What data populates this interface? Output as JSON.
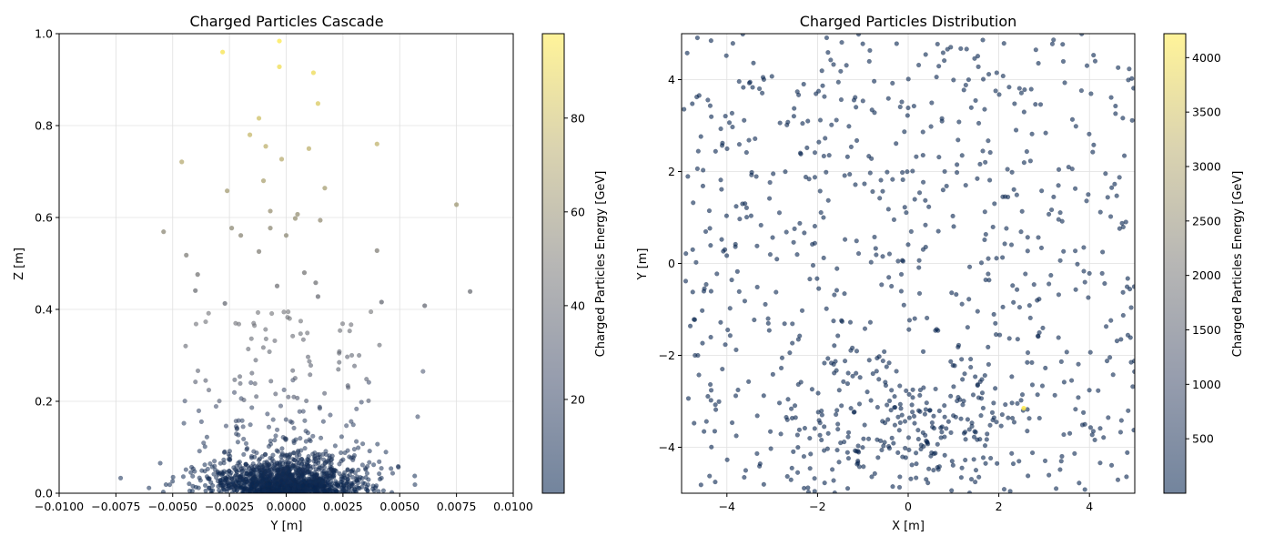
{
  "chart_data": [
    {
      "type": "scatter",
      "title": "Charged Particles Cascade",
      "xlabel": "Y [m]",
      "ylabel": "Z [m]",
      "xlim": [
        -0.01,
        0.01
      ],
      "ylim": [
        0.0,
        1.0
      ],
      "xticks": [
        "−0.0100",
        "−0.0075",
        "−0.0050",
        "−0.0025",
        "0.0000",
        "0.0025",
        "0.0050",
        "0.0075",
        "0.0100"
      ],
      "yticks": [
        "0.0",
        "0.2",
        "0.4",
        "0.6",
        "0.8",
        "1.0"
      ],
      "grid": true,
      "colormap": "cividis",
      "colorbar": {
        "label": "Charged Particles Energy [GeV]",
        "range": [
          0,
          98
        ],
        "ticks": [
          "20",
          "40",
          "60",
          "80"
        ],
        "tick_values": [
          20,
          40,
          60,
          80
        ]
      },
      "distribution_note_points": "approx. 1500 particles concentrated near Z=0, |Y|<0.0045",
      "highlighted_points": [
        {
          "x": -0.0003,
          "y": 0.984,
          "energy": 97
        },
        {
          "x": -0.0028,
          "y": 0.96,
          "energy": 95
        },
        {
          "x": -0.0003,
          "y": 0.928,
          "energy": 92
        },
        {
          "x": 0.0012,
          "y": 0.915,
          "energy": 91
        },
        {
          "x": 0.0014,
          "y": 0.848,
          "energy": 84
        },
        {
          "x": -0.0012,
          "y": 0.816,
          "energy": 80
        },
        {
          "x": -0.0016,
          "y": 0.78,
          "energy": 77
        },
        {
          "x": 0.004,
          "y": 0.76,
          "energy": 75
        },
        {
          "x": -0.0009,
          "y": 0.755,
          "energy": 74
        },
        {
          "x": 0.001,
          "y": 0.75,
          "energy": 74
        },
        {
          "x": -0.0002,
          "y": 0.727,
          "energy": 72
        },
        {
          "x": -0.0046,
          "y": 0.721,
          "energy": 71
        },
        {
          "x": -0.001,
          "y": 0.68,
          "energy": 67
        },
        {
          "x": 0.0017,
          "y": 0.664,
          "energy": 65
        },
        {
          "x": -0.0026,
          "y": 0.658,
          "energy": 64
        },
        {
          "x": 0.0075,
          "y": 0.628,
          "energy": 62
        },
        {
          "x": -0.0007,
          "y": 0.614,
          "energy": 60
        },
        {
          "x": 0.0005,
          "y": 0.607,
          "energy": 59
        },
        {
          "x": 0.0004,
          "y": 0.598,
          "energy": 59
        },
        {
          "x": 0.0015,
          "y": 0.594,
          "energy": 58
        },
        {
          "x": -0.0024,
          "y": 0.577,
          "energy": 56
        },
        {
          "x": -0.0007,
          "y": 0.577,
          "energy": 56
        },
        {
          "x": -0.0054,
          "y": 0.569,
          "energy": 55
        },
        {
          "x": 0.0,
          "y": 0.561,
          "energy": 55
        },
        {
          "x": -0.002,
          "y": 0.561,
          "energy": 54
        },
        {
          "x": -0.0012,
          "y": 0.526,
          "energy": 51
        },
        {
          "x": 0.004,
          "y": 0.528,
          "energy": 51
        },
        {
          "x": -0.0044,
          "y": 0.518,
          "energy": 50
        },
        {
          "x": -0.0039,
          "y": 0.476,
          "energy": 46
        },
        {
          "x": 0.0008,
          "y": 0.48,
          "energy": 46
        },
        {
          "x": 0.0013,
          "y": 0.458,
          "energy": 44
        },
        {
          "x": -0.0004,
          "y": 0.451,
          "energy": 44
        },
        {
          "x": -0.004,
          "y": 0.441,
          "energy": 43
        },
        {
          "x": 0.0081,
          "y": 0.439,
          "energy": 42
        },
        {
          "x": 0.0042,
          "y": 0.416,
          "energy": 40
        },
        {
          "x": 0.0061,
          "y": 0.408,
          "energy": 39
        },
        {
          "x": -0.0027,
          "y": 0.413,
          "energy": 40
        },
        {
          "x": 0.0014,
          "y": 0.428,
          "energy": 41
        }
      ]
    },
    {
      "type": "scatter",
      "title": "Charged Particles Distribution",
      "xlabel": "X [m]",
      "ylabel": "Y [m]",
      "xlim": [
        -5,
        5
      ],
      "ylim": [
        -5,
        5
      ],
      "xticks": [
        "−4",
        "−2",
        "0",
        "2",
        "4"
      ],
      "yticks": [
        "−4",
        "−2",
        "0",
        "2",
        "4"
      ],
      "grid": true,
      "colormap": "cividis",
      "colorbar": {
        "label": "Charged Particles Energy [GeV]",
        "range": [
          0,
          4220
        ],
        "ticks": [
          "500",
          "1000",
          "1500",
          "2000",
          "2500",
          "3000",
          "3500",
          "4000"
        ],
        "tick_values": [
          500,
          1000,
          1500,
          2000,
          2500,
          3000,
          3500,
          4000
        ]
      },
      "highlighted_points": [
        {
          "x": 2.55,
          "y": -3.15,
          "energy": 4200
        }
      ]
    }
  ]
}
